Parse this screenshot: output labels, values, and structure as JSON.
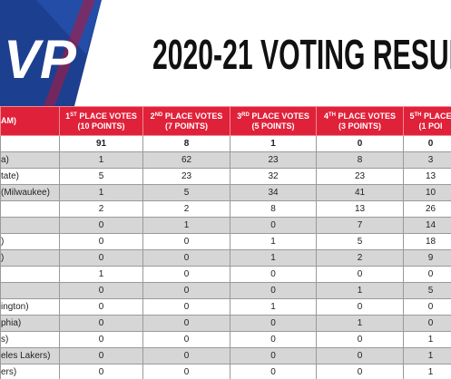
{
  "header": {
    "logo": "VP",
    "title": "2020-21 VOTING RESUL"
  },
  "table": {
    "columns": [
      {
        "text": "AM)"
      },
      {
        "num": "1",
        "sup": "ST",
        "text": "PLACE VOTES",
        "points": "(10 POINTS)"
      },
      {
        "num": "2",
        "sup": "ND",
        "text": "PLACE VOTES",
        "points": "(7 POINTS)"
      },
      {
        "num": "3",
        "sup": "RD",
        "text": "PLACE VOTES",
        "points": "(5 POINTS)"
      },
      {
        "num": "4",
        "sup": "TH",
        "text": "PLACE VOTES",
        "points": "(3 POINTS)"
      },
      {
        "num": "5",
        "sup": "TH",
        "text": "PLACE",
        "points": "(1 POI"
      }
    ],
    "rows": [
      {
        "votes": [
          91,
          8,
          1,
          0,
          0
        ]
      },
      {
        "name": "a)",
        "votes": [
          1,
          62,
          23,
          8,
          3
        ]
      },
      {
        "name": "tate)",
        "votes": [
          5,
          23,
          32,
          23,
          13
        ]
      },
      {
        "name": "(Milwaukee)",
        "votes": [
          1,
          5,
          34,
          41,
          10
        ]
      },
      {
        "votes": [
          2,
          2,
          8,
          13,
          26
        ]
      },
      {
        "votes": [
          0,
          1,
          0,
          7,
          14
        ]
      },
      {
        "name": ")",
        "votes": [
          0,
          0,
          1,
          5,
          18
        ]
      },
      {
        "name": ")",
        "votes": [
          0,
          0,
          1,
          2,
          9
        ]
      },
      {
        "votes": [
          1,
          0,
          0,
          0,
          0
        ]
      },
      {
        "votes": [
          0,
          0,
          0,
          1,
          5
        ]
      },
      {
        "name": "ington)",
        "votes": [
          0,
          0,
          1,
          0,
          0
        ]
      },
      {
        "name": "phia)",
        "votes": [
          0,
          0,
          0,
          1,
          0
        ]
      },
      {
        "name": "s)",
        "votes": [
          0,
          0,
          0,
          0,
          1
        ]
      },
      {
        "name": "eles Lakers)",
        "votes": [
          0,
          0,
          0,
          0,
          1
        ]
      },
      {
        "name": "ers)",
        "votes": [
          0,
          0,
          0,
          0,
          1
        ]
      }
    ]
  }
}
